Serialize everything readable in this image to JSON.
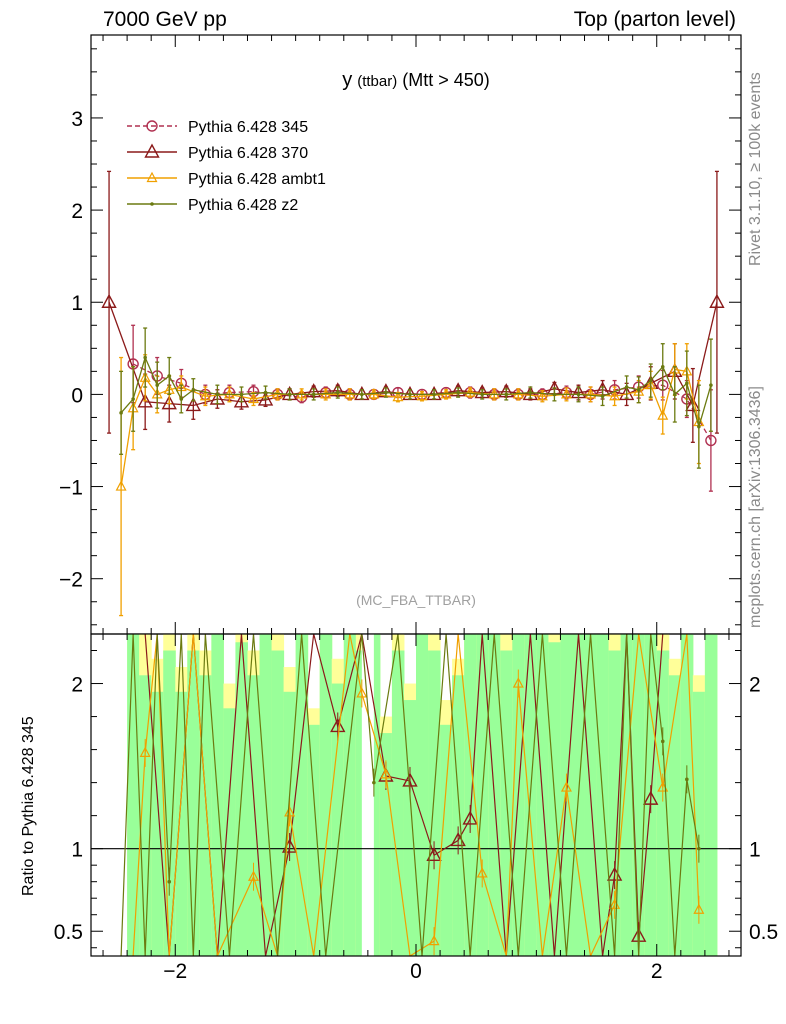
{
  "header": {
    "left": "7000 GeV pp",
    "right": "Top (parton level)"
  },
  "side_labels": {
    "rivet": "Rivet 3.1.10, ≥ 100k events",
    "mcplots": "mcplots.cern.ch [arXiv:1306.3436]"
  },
  "colors": {
    "p345": "#b03050",
    "p370": "#8b1a1a",
    "ambt1": "#f0a000",
    "z2": "#6b7a10",
    "band_outer": "#ffff99",
    "band_inner": "#99ff99"
  },
  "chart_data": [
    {
      "type": "line",
      "title": "y (ttbar) (Mtt > 450)",
      "title_parts": {
        "main": "y",
        "sub": "(ttbar)",
        "rest": "(Mtt > 450)"
      },
      "watermark": "(MC_FBA_TTBAR)",
      "xlim": [
        -2.7,
        2.7
      ],
      "ylim": [
        -2.6,
        3.9
      ],
      "yticks": [
        {
          "v": 3,
          "label": "3"
        },
        {
          "v": 2,
          "label": "2"
        },
        {
          "v": 1,
          "label": "1"
        },
        {
          "v": 0,
          "label": "0"
        },
        {
          "v": -1,
          "label": "−1"
        },
        {
          "v": -2,
          "label": "−2"
        }
      ],
      "legend_position": "top-left",
      "series": [
        {
          "name": "Pythia 6.428 345",
          "color_key": "p345",
          "marker": "circle",
          "dashed": true,
          "x": [
            -2.35,
            -2.15,
            -1.95,
            -1.75,
            -1.55,
            -1.35,
            -1.15,
            -0.95,
            -0.75,
            -0.55,
            -0.35,
            -0.15,
            0.05,
            0.25,
            0.45,
            0.65,
            0.85,
            1.05,
            1.25,
            1.45,
            1.65,
            1.85,
            2.05,
            2.25,
            2.45
          ],
          "y": [
            0.33,
            0.2,
            0.12,
            0.0,
            0.02,
            0.03,
            0.0,
            -0.03,
            0.02,
            0.0,
            0.0,
            0.02,
            0.0,
            0.02,
            0.02,
            0.0,
            0.0,
            0.0,
            0.02,
            0.0,
            0.05,
            0.08,
            0.1,
            -0.05,
            -0.5
          ],
          "err": [
            0.42,
            0.2,
            0.15,
            0.1,
            0.08,
            0.07,
            0.06,
            0.06,
            0.06,
            0.06,
            0.05,
            0.05,
            0.05,
            0.05,
            0.06,
            0.06,
            0.06,
            0.06,
            0.07,
            0.08,
            0.1,
            0.12,
            0.16,
            0.2,
            0.55
          ]
        },
        {
          "name": "Pythia 6.428 370",
          "color_key": "p370",
          "marker": "triangle",
          "dashed": false,
          "x": [
            -2.55,
            -2.25,
            -2.05,
            -1.85,
            -1.65,
            -1.45,
            -1.25,
            -1.05,
            -0.85,
            -0.65,
            -0.45,
            -0.25,
            -0.05,
            0.15,
            0.35,
            0.55,
            0.75,
            0.95,
            1.15,
            1.35,
            1.55,
            1.75,
            1.95,
            2.15,
            2.3,
            2.5
          ],
          "y": [
            1.0,
            -0.08,
            -0.1,
            -0.12,
            -0.05,
            -0.08,
            -0.06,
            0.0,
            0.03,
            0.04,
            0.0,
            0.03,
            0.0,
            0.0,
            0.04,
            0.02,
            0.03,
            0.0,
            0.06,
            0.02,
            0.05,
            0.0,
            0.12,
            0.25,
            -0.12,
            1.0
          ],
          "err": [
            1.42,
            0.3,
            0.2,
            0.15,
            0.1,
            0.08,
            0.07,
            0.06,
            0.06,
            0.06,
            0.05,
            0.05,
            0.05,
            0.05,
            0.05,
            0.05,
            0.06,
            0.06,
            0.07,
            0.08,
            0.1,
            0.12,
            0.18,
            0.3,
            0.4,
            1.42
          ]
        },
        {
          "name": "Pythia 6.428 ambt1",
          "color_key": "ambt1",
          "marker": "triangle-small",
          "dashed": false,
          "x": [
            -2.45,
            -2.35,
            -2.25,
            -2.15,
            -2.05,
            -1.95,
            -1.75,
            -1.55,
            -1.35,
            -1.15,
            -0.95,
            -0.75,
            -0.55,
            -0.35,
            -0.15,
            0.05,
            0.25,
            0.45,
            0.65,
            0.85,
            1.05,
            1.25,
            1.45,
            1.65,
            1.85,
            1.95,
            2.05,
            2.15,
            2.25,
            2.35
          ],
          "y": [
            -1.0,
            -0.15,
            0.18,
            0.0,
            0.05,
            0.08,
            -0.02,
            0.0,
            -0.05,
            0.0,
            0.0,
            0.0,
            0.0,
            0.0,
            -0.03,
            -0.02,
            0.0,
            0.02,
            0.0,
            0.0,
            -0.02,
            0.0,
            0.0,
            -0.02,
            0.03,
            0.1,
            -0.23,
            0.27,
            0.25,
            -0.3
          ],
          "err": [
            1.4,
            0.45,
            0.25,
            0.2,
            0.15,
            0.12,
            0.1,
            0.08,
            0.07,
            0.06,
            0.06,
            0.06,
            0.06,
            0.05,
            0.05,
            0.05,
            0.05,
            0.05,
            0.06,
            0.06,
            0.06,
            0.07,
            0.08,
            0.1,
            0.12,
            0.15,
            0.2,
            0.28,
            0.3,
            0.45
          ]
        },
        {
          "name": "Pythia 6.428 z2",
          "color_key": "z2",
          "marker": "dot",
          "dashed": false,
          "x": [
            -2.45,
            -2.35,
            -2.25,
            -2.15,
            -2.05,
            -1.95,
            -1.85,
            -1.65,
            -1.45,
            -1.25,
            -1.05,
            -0.85,
            -0.65,
            -0.45,
            -0.25,
            -0.05,
            0.15,
            0.35,
            0.55,
            0.75,
            0.95,
            1.15,
            1.35,
            1.55,
            1.75,
            1.85,
            1.95,
            2.05,
            2.15,
            2.25,
            2.35,
            2.45
          ],
          "y": [
            -0.2,
            -0.05,
            0.4,
            0.1,
            0.2,
            -0.05,
            0.05,
            0.0,
            0.0,
            0.02,
            0.0,
            0.0,
            0.02,
            0.0,
            0.02,
            0.0,
            0.0,
            0.02,
            0.0,
            0.0,
            0.02,
            0.0,
            0.0,
            -0.02,
            0.08,
            0.05,
            0.15,
            0.3,
            0.0,
            0.12,
            -0.35,
            0.1
          ],
          "err": [
            0.45,
            0.35,
            0.32,
            0.25,
            0.2,
            0.15,
            0.12,
            0.1,
            0.08,
            0.07,
            0.06,
            0.06,
            0.06,
            0.05,
            0.05,
            0.05,
            0.05,
            0.05,
            0.05,
            0.06,
            0.06,
            0.07,
            0.08,
            0.1,
            0.12,
            0.14,
            0.18,
            0.25,
            0.3,
            0.35,
            0.45,
            0.5
          ]
        }
      ]
    },
    {
      "type": "line",
      "ylabel": "Ratio to Pythia 6.428 345",
      "xlim": [
        -2.7,
        2.7
      ],
      "ylim": [
        0.35,
        2.3
      ],
      "xticks": [
        {
          "v": -2,
          "label": "−2"
        },
        {
          "v": 0,
          "label": "0"
        },
        {
          "v": 2,
          "label": "2"
        }
      ],
      "yticks": [
        {
          "v": 2,
          "label": "2"
        },
        {
          "v": 1,
          "label": "1"
        },
        {
          "v": 0.5,
          "label": "0.5"
        }
      ],
      "reference_line": 1,
      "band_bins": [
        -2.4,
        -2.3,
        -2.2,
        -2.1,
        -2.0,
        -1.9,
        -1.8,
        -1.7,
        -1.6,
        -1.5,
        -1.4,
        -1.3,
        -1.2,
        -1.1,
        -1.0,
        -0.9,
        -0.8,
        -0.7,
        -0.6,
        -0.5,
        -0.4,
        -0.3,
        -0.2,
        -0.1,
        0.0,
        0.1,
        0.2,
        0.3,
        0.4,
        0.5,
        0.6,
        0.7,
        0.8,
        0.9,
        1.0,
        1.1,
        1.2,
        1.3,
        1.4,
        1.5,
        1.6,
        1.7,
        1.8,
        1.9,
        2.0,
        2.1,
        2.2,
        2.3,
        2.4,
        2.5
      ],
      "band_outer_top": [
        2.3,
        2.3,
        2.15,
        2.3,
        2.1,
        2.3,
        2.2,
        2.3,
        2.0,
        2.3,
        2.2,
        2.3,
        2.3,
        2.1,
        2.3,
        1.85,
        2.3,
        2.15,
        2.3,
        2.3,
        2.3,
        1.8,
        2.3,
        2.0,
        2.3,
        2.3,
        1.9,
        2.15,
        2.3,
        2.3,
        2.3,
        2.3,
        2.3,
        2.3,
        2.3,
        2.3,
        2.3,
        2.3,
        2.3,
        2.3,
        2.3,
        2.3,
        2.3,
        2.3,
        2.3,
        2.15,
        2.3,
        2.05,
        2.3
      ],
      "band_inner_top": [
        2.3,
        2.05,
        1.95,
        2.2,
        1.95,
        2.2,
        2.05,
        2.3,
        1.85,
        2.25,
        2.05,
        2.3,
        2.2,
        1.95,
        2.3,
        1.75,
        2.3,
        2.0,
        2.3,
        2.2,
        2.3,
        1.7,
        2.2,
        1.9,
        2.3,
        2.2,
        1.75,
        2.05,
        2.3,
        2.3,
        2.3,
        2.2,
        2.3,
        2.3,
        2.3,
        2.25,
        2.3,
        2.3,
        2.3,
        2.3,
        2.2,
        2.3,
        2.3,
        2.3,
        2.2,
        2.05,
        2.3,
        1.95,
        2.3
      ],
      "series": [
        {
          "name": "Pythia 6.428 370",
          "color_key": "p370",
          "x": [
            -2.25,
            -2.05,
            -1.85,
            -1.65,
            -1.45,
            -1.25,
            -1.05,
            -0.85,
            -0.65,
            -0.45,
            -0.25,
            -0.05,
            0.15,
            0.35,
            0.45,
            0.55,
            0.75,
            0.95,
            1.15,
            1.35,
            1.55,
            1.65,
            1.75,
            1.85,
            1.95,
            2.05
          ],
          "y": [
            2.3,
            0.35,
            2.3,
            0.35,
            2.3,
            0.35,
            1.01,
            2.3,
            1.74,
            2.3,
            1.44,
            1.41,
            0.96,
            1.05,
            1.18,
            2.3,
            0.35,
            2.3,
            0.35,
            2.3,
            0.35,
            0.84,
            2.3,
            0.47,
            1.3,
            2.3
          ]
        },
        {
          "name": "Pythia 6.428 ambt1",
          "color_key": "ambt1",
          "x": [
            -2.35,
            -2.25,
            -2.15,
            -2.05,
            -1.85,
            -1.65,
            -1.35,
            -1.15,
            -1.05,
            -0.85,
            -0.55,
            -0.45,
            -0.25,
            -0.05,
            0.15,
            0.35,
            0.55,
            0.75,
            0.85,
            1.05,
            1.25,
            1.45,
            1.65,
            1.85,
            2.05,
            2.25,
            2.35
          ],
          "y": [
            0.35,
            1.58,
            2.3,
            0.35,
            2.3,
            0.35,
            0.83,
            0.35,
            1.22,
            0.35,
            2.3,
            1.94,
            1.45,
            0.35,
            0.44,
            2.3,
            0.85,
            0.35,
            2.0,
            0.35,
            1.37,
            0.35,
            0.66,
            2.3,
            1.37,
            2.3,
            0.63
          ]
        },
        {
          "name": "Pythia 6.428 z2",
          "color_key": "z2",
          "x": [
            -2.45,
            -2.35,
            -2.25,
            -2.15,
            -2.05,
            -1.95,
            -1.85,
            -1.75,
            -1.55,
            -1.35,
            -1.15,
            -0.95,
            -0.75,
            -0.45,
            -0.35,
            -0.15,
            0.05,
            0.25,
            0.45,
            0.65,
            0.85,
            1.05,
            1.25,
            1.45,
            1.65,
            1.75,
            1.85,
            1.95,
            2.05,
            2.15,
            2.25,
            2.35
          ],
          "y": [
            0.35,
            2.3,
            0.35,
            2.3,
            0.8,
            2.3,
            0.35,
            2.3,
            0.35,
            2.3,
            0.35,
            2.3,
            0.35,
            2.3,
            1.4,
            2.3,
            0.35,
            2.3,
            0.35,
            2.3,
            0.35,
            2.3,
            0.35,
            2.3,
            0.35,
            2.3,
            0.35,
            2.3,
            1.65,
            0.35,
            1.42,
            1.0
          ]
        }
      ]
    }
  ]
}
